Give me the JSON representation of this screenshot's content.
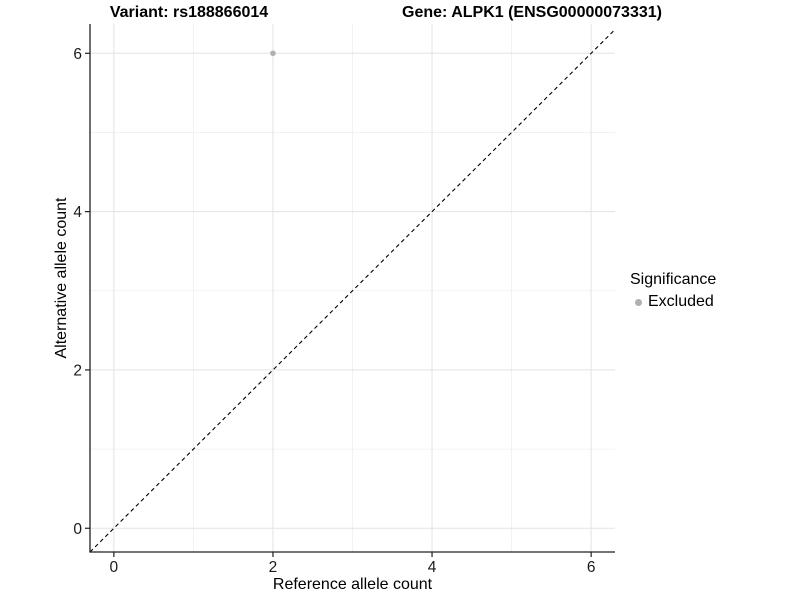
{
  "chart_data": {
    "type": "scatter",
    "titles": {
      "left": "Variant: rs188866014",
      "right": "Gene: ALPK1 (ENSG00000073331)"
    },
    "xlabel": "Reference allele count",
    "ylabel": "Alternative allele count",
    "xlim": [
      -0.3,
      6.3
    ],
    "ylim": [
      -0.3,
      6.37
    ],
    "x_ticks": [
      0,
      2,
      4,
      6
    ],
    "y_ticks": [
      0,
      2,
      4,
      6
    ],
    "x_minor_ticks": [
      1,
      3,
      5
    ],
    "y_minor_ticks": [
      1,
      3,
      5
    ],
    "grid": "major and minor gridlines on white panel",
    "points": [
      {
        "x": 2,
        "y": 6,
        "series": "Excluded"
      }
    ],
    "identity_line": {
      "slope": 1,
      "intercept": 0,
      "style": "dashed"
    },
    "legend": {
      "title": "Significance",
      "position": "right",
      "entries": [
        {
          "label": "Excluded",
          "color": "#b0b0b0"
        }
      ]
    },
    "colors": {
      "point": "#b0b0b0",
      "grid_major": "#e3e3e3",
      "grid_minor": "#efefef",
      "axis_line": "#202020",
      "tick_text": "#1a1a1a",
      "diagonal": "#000000"
    }
  }
}
